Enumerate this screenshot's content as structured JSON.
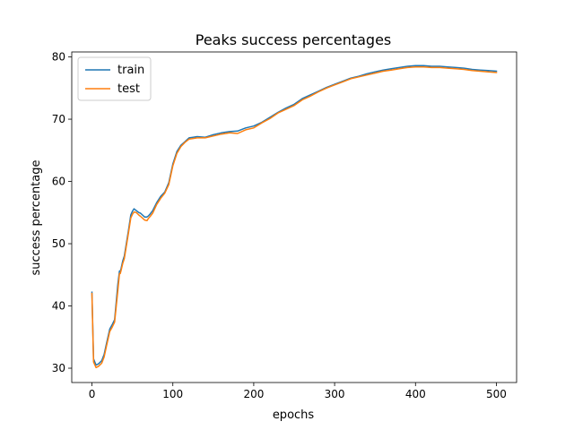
{
  "chart_data": {
    "type": "line",
    "title": "Peaks success percentages",
    "xlabel": "epochs",
    "ylabel": "success percentage",
    "xlim": [
      -25,
      525
    ],
    "ylim": [
      27.7,
      80.8
    ],
    "xticks": [
      0,
      100,
      200,
      300,
      400,
      500
    ],
    "yticks": [
      30,
      40,
      50,
      60,
      70,
      80
    ],
    "grid": false,
    "legend_position": "top-left",
    "series": [
      {
        "name": "train",
        "color": "#1f77b4",
        "x": [
          0,
          2,
          5,
          8,
          12,
          15,
          18,
          22,
          25,
          28,
          32,
          34,
          35,
          36,
          38,
          40,
          45,
          48,
          50,
          52,
          55,
          58,
          60,
          65,
          68,
          70,
          72,
          75,
          80,
          85,
          90,
          95,
          100,
          105,
          110,
          115,
          120,
          125,
          130,
          140,
          150,
          160,
          170,
          180,
          190,
          200,
          210,
          220,
          230,
          240,
          250,
          260,
          270,
          280,
          290,
          300,
          310,
          320,
          330,
          340,
          350,
          360,
          370,
          380,
          390,
          400,
          410,
          420,
          430,
          440,
          450,
          460,
          470,
          480,
          490,
          500
        ],
        "y": [
          42.2,
          31.5,
          30.5,
          30.7,
          31.2,
          32.2,
          34,
          36.3,
          37,
          37.8,
          43.5,
          45.6,
          45.6,
          46,
          47.2,
          48,
          52,
          54.6,
          55.2,
          55.6,
          55.3,
          55,
          54.9,
          54.3,
          54.3,
          54.5,
          54.8,
          55.3,
          56.6,
          57.6,
          58.3,
          59.8,
          62.8,
          64.8,
          65.8,
          66.4,
          67,
          67.1,
          67.2,
          67.1,
          67.5,
          67.8,
          68,
          68.1,
          68.6,
          68.9,
          69.5,
          70.3,
          71.1,
          71.8,
          72.4,
          73.3,
          73.9,
          74.5,
          75.1,
          75.6,
          76.1,
          76.6,
          76.9,
          77.3,
          77.6,
          77.9,
          78.1,
          78.3,
          78.5,
          78.6,
          78.6,
          78.5,
          78.5,
          78.4,
          78.3,
          78.2,
          78,
          77.9,
          77.8,
          77.7
        ]
      },
      {
        "name": "test",
        "color": "#ff7f0e",
        "x": [
          0,
          2,
          5,
          8,
          12,
          15,
          18,
          22,
          25,
          28,
          32,
          34,
          35,
          36,
          38,
          40,
          45,
          48,
          50,
          52,
          55,
          58,
          60,
          65,
          68,
          70,
          72,
          75,
          80,
          85,
          90,
          95,
          100,
          105,
          110,
          115,
          120,
          125,
          130,
          140,
          150,
          160,
          170,
          180,
          190,
          200,
          210,
          220,
          230,
          240,
          250,
          260,
          270,
          280,
          290,
          300,
          310,
          320,
          330,
          340,
          350,
          360,
          370,
          380,
          390,
          400,
          410,
          420,
          430,
          440,
          450,
          460,
          470,
          480,
          490,
          500
        ],
        "y": [
          42,
          31,
          30.1,
          30.3,
          30.8,
          31.8,
          33.6,
          35.9,
          36.6,
          37.4,
          42.5,
          45.2,
          45.2,
          45.7,
          46.8,
          47.6,
          51.6,
          54.1,
          54.7,
          55.1,
          55,
          54.6,
          54.4,
          53.8,
          53.7,
          54.1,
          54.4,
          54.9,
          56.3,
          57.3,
          58.1,
          59.5,
          62.5,
          64.5,
          65.6,
          66.3,
          66.8,
          66.9,
          67,
          67,
          67.3,
          67.6,
          67.8,
          67.7,
          68.3,
          68.6,
          69.4,
          70.1,
          71,
          71.6,
          72.2,
          73.1,
          73.7,
          74.4,
          75,
          75.5,
          76,
          76.5,
          76.8,
          77.1,
          77.4,
          77.7,
          77.9,
          78.1,
          78.3,
          78.4,
          78.4,
          78.3,
          78.3,
          78.2,
          78.1,
          78,
          77.8,
          77.7,
          77.6,
          77.5
        ]
      }
    ]
  }
}
